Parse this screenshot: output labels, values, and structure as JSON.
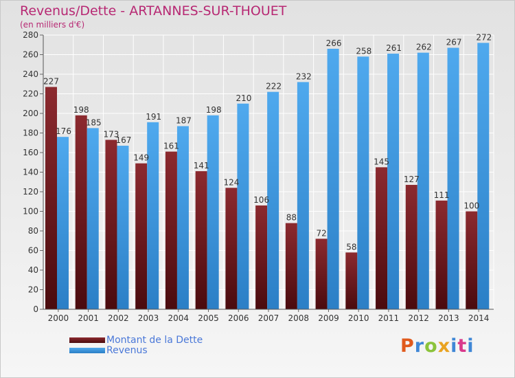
{
  "chart_data": {
    "type": "bar",
    "title": "Revenus/Dette - ARTANNES-SUR-THOUET",
    "subtitle": "(en milliers d'€)",
    "categories": [
      "2000",
      "2001",
      "2002",
      "2003",
      "2004",
      "2005",
      "2006",
      "2007",
      "2008",
      "2009",
      "2010",
      "2011",
      "2012",
      "2013",
      "2014"
    ],
    "series": [
      {
        "name": "Montant de la Dette",
        "color": "#7a1f24",
        "values": [
          227,
          198,
          173,
          149,
          161,
          141,
          124,
          106,
          88,
          72,
          58,
          145,
          127,
          111,
          100
        ]
      },
      {
        "name": "Revenus",
        "color": "#3d9ae6",
        "values": [
          176,
          185,
          167,
          191,
          187,
          198,
          210,
          222,
          232,
          266,
          258,
          261,
          262,
          267,
          272
        ]
      }
    ],
    "ylim": [
      0,
      280
    ],
    "yticks": [
      0,
      20,
      40,
      60,
      80,
      100,
      120,
      140,
      160,
      180,
      200,
      220,
      240,
      260,
      280
    ],
    "grid": true,
    "legend_position": "bottom-left"
  },
  "logo": {
    "letters": [
      "P",
      "r",
      "o",
      "x",
      "i",
      "t",
      "i"
    ],
    "colors": [
      "#e05a1c",
      "#3f87d6",
      "#8bc33b",
      "#e9a321",
      "#3f87d6",
      "#d93a8c",
      "#3f87d6"
    ]
  }
}
